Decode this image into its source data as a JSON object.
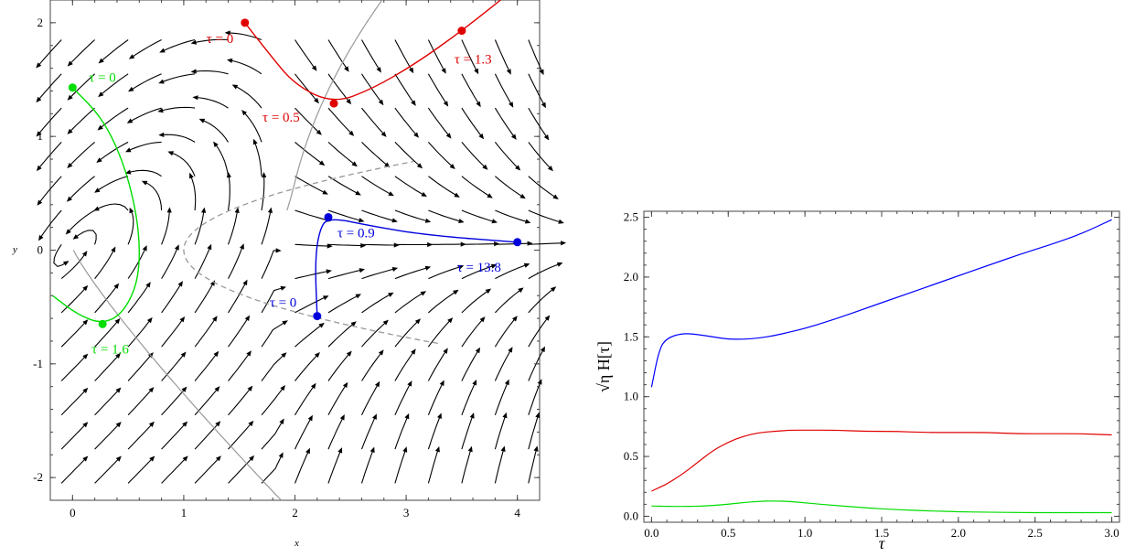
{
  "chart_data": [
    {
      "type": "line",
      "subtype": "streamplot",
      "xlabel": "x",
      "ylabel": "y",
      "xlim": [
        -0.2,
        4.2
      ],
      "ylim": [
        -2.2,
        2.2
      ],
      "xticks": [
        0,
        1,
        2,
        3,
        4
      ],
      "xtick_labels": [
        "0",
        "1",
        "2",
        "3",
        "4"
      ],
      "yticks": [
        -2,
        -1,
        0,
        1,
        2
      ],
      "ytick_labels": [
        "-2",
        "-1",
        "0",
        "1",
        "2"
      ],
      "grid": false,
      "colors": {
        "red": "#e00000",
        "green": "#00dd00",
        "blue": "#0000dd",
        "gray": "#999999"
      },
      "series": [
        {
          "color": "red",
          "points": [
            [
              1.55,
              2.0
            ],
            [
              1.75,
              1.75
            ],
            [
              2.0,
              1.45
            ],
            [
              2.35,
              1.29
            ],
            [
              2.7,
              1.42
            ],
            [
              3.1,
              1.65
            ],
            [
              3.5,
              1.93
            ],
            [
              3.85,
              2.2
            ]
          ],
          "markers": [
            {
              "x": 1.55,
              "y": 2.0,
              "label": "τ = 0"
            },
            {
              "x": 2.35,
              "y": 1.29,
              "label": "τ = 0.5"
            },
            {
              "x": 3.5,
              "y": 1.93,
              "label": "τ = 1.3"
            }
          ]
        },
        {
          "color": "green",
          "points": [
            [
              0.0,
              1.43
            ],
            [
              0.28,
              1.15
            ],
            [
              0.48,
              0.72
            ],
            [
              0.6,
              0.2
            ],
            [
              0.6,
              -0.25
            ],
            [
              0.46,
              -0.55
            ],
            [
              0.27,
              -0.65
            ],
            [
              0.05,
              -0.57
            ],
            [
              -0.18,
              -0.4
            ]
          ],
          "markers": [
            {
              "x": 0.0,
              "y": 1.43,
              "label": "τ = 0"
            },
            {
              "x": 0.27,
              "y": -0.65,
              "label": "τ = 1.6"
            }
          ]
        },
        {
          "color": "blue",
          "points": [
            [
              2.2,
              -0.58
            ],
            [
              2.18,
              -0.1
            ],
            [
              2.22,
              0.18
            ],
            [
              2.3,
              0.29
            ],
            [
              2.7,
              0.21
            ],
            [
              3.2,
              0.13
            ],
            [
              4.0,
              0.07
            ]
          ],
          "markers": [
            {
              "x": 2.2,
              "y": -0.58,
              "label": "τ = 0"
            },
            {
              "x": 2.3,
              "y": 0.29,
              "label": "τ = 0.9"
            },
            {
              "x": 4.0,
              "y": 0.07,
              "label": "τ = 13.8"
            }
          ]
        }
      ]
    },
    {
      "type": "line",
      "xlabel": "τ",
      "ylabel": "√η H[τ]",
      "xlim": [
        -0.05,
        3.05
      ],
      "ylim": [
        -0.05,
        2.55
      ],
      "xticks": [
        0.0,
        0.5,
        1.0,
        1.5,
        2.0,
        2.5,
        3.0
      ],
      "xtick_labels": [
        "0.0",
        "0.5",
        "1.0",
        "1.5",
        "2.0",
        "2.5",
        "3.0"
      ],
      "yticks": [
        0.0,
        0.5,
        1.0,
        1.5,
        2.0,
        2.5
      ],
      "ytick_labels": [
        "0.0",
        "0.5",
        "1.0",
        "1.5",
        "2.0",
        "2.5"
      ],
      "grid": false,
      "x": [
        0,
        0.05,
        0.1,
        0.2,
        0.3,
        0.4,
        0.5,
        0.6,
        0.7,
        0.8,
        0.9,
        1.0,
        1.2,
        1.4,
        1.6,
        1.8,
        2.0,
        2.2,
        2.4,
        2.6,
        2.8,
        3.0
      ],
      "series": [
        {
          "color": "#0000ff",
          "values": [
            1.08,
            1.4,
            1.49,
            1.53,
            1.52,
            1.5,
            1.48,
            1.48,
            1.49,
            1.51,
            1.54,
            1.57,
            1.65,
            1.74,
            1.83,
            1.92,
            2.01,
            2.1,
            2.19,
            2.27,
            2.36,
            2.48
          ]
        },
        {
          "color": "#e00000",
          "values": [
            0.21,
            0.24,
            0.27,
            0.35,
            0.45,
            0.55,
            0.62,
            0.67,
            0.7,
            0.71,
            0.72,
            0.72,
            0.72,
            0.71,
            0.71,
            0.7,
            0.7,
            0.7,
            0.69,
            0.69,
            0.69,
            0.68
          ]
        },
        {
          "color": "#00dd00",
          "values": [
            0.085,
            0.085,
            0.083,
            0.082,
            0.084,
            0.09,
            0.1,
            0.115,
            0.125,
            0.128,
            0.124,
            0.112,
            0.09,
            0.07,
            0.055,
            0.045,
            0.038,
            0.034,
            0.031,
            0.03,
            0.03,
            0.03
          ]
        }
      ]
    }
  ]
}
